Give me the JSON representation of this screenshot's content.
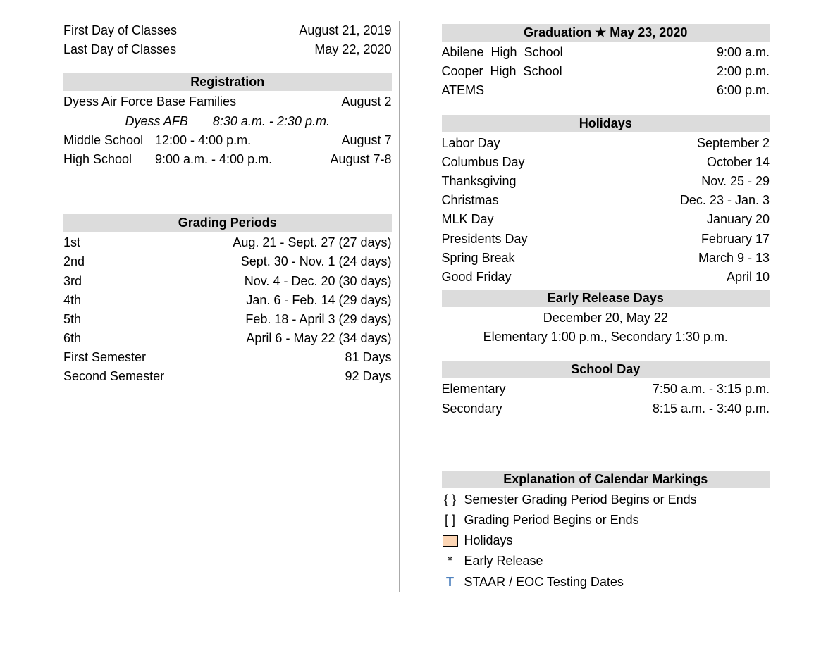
{
  "colors": {
    "header_bg": "#dcdcdc",
    "text": "#000000",
    "background": "#ffffff",
    "holiday_box_fill": "#fcd5b4",
    "holiday_box_border": "#000000",
    "t_color": "#4f81bd",
    "divider": "#aaaaaa"
  },
  "typography": {
    "font_family": "Arial",
    "base_font_size_pt": 14
  },
  "left": {
    "classes": [
      {
        "label": "First Day of Classes",
        "value": "August 21, 2019"
      },
      {
        "label": "Last Day of Classes",
        "value": "May 22, 2020"
      }
    ],
    "registration": {
      "header": "Registration",
      "rows": [
        {
          "label": "Dyess Air Force Base Families",
          "time": "",
          "date": "August 2"
        }
      ],
      "italic_line": "Dyess AFB       8:30 a.m. - 2:30 p.m.",
      "rows2": [
        {
          "label": "Middle School",
          "time": "12:00 - 4:00 p.m.",
          "date": "August 7"
        },
        {
          "label": "High School",
          "time": "9:00 a.m. - 4:00 p.m.",
          "date": "August 7-8"
        }
      ]
    },
    "grading": {
      "header": "Grading Periods",
      "rows": [
        {
          "label": "1st",
          "value": "Aug. 21 - Sept. 27 (27 days)"
        },
        {
          "label": "2nd",
          "value": "Sept. 30 - Nov. 1 (24 days)"
        },
        {
          "label": "3rd",
          "value": "Nov. 4 - Dec. 20 (30 days)"
        },
        {
          "label": "4th",
          "value": "Jan. 6 - Feb. 14 (29 days)"
        },
        {
          "label": "5th",
          "value": "Feb. 18 - April 3 (29 days)"
        },
        {
          "label": "6th",
          "value": "April 6 - May 22 (34 days)"
        },
        {
          "label": "First Semester",
          "value": "81 Days"
        },
        {
          "label": "Second Semester",
          "value": "92 Days"
        }
      ]
    }
  },
  "right": {
    "graduation": {
      "header": "Graduation ★ May 23, 2020",
      "rows": [
        {
          "label": "Abilene  High  School",
          "value": "9:00 a.m."
        },
        {
          "label": "Cooper  High  School",
          "value": "2:00 p.m."
        },
        {
          "label": "ATEMS",
          "value": "6:00 p.m."
        }
      ]
    },
    "holidays": {
      "header": "Holidays",
      "rows": [
        {
          "label": "Labor Day",
          "value": "September 2"
        },
        {
          "label": "Columbus Day",
          "value": "October 14"
        },
        {
          "label": "Thanksgiving",
          "value": "Nov. 25 - 29"
        },
        {
          "label": "Christmas",
          "value": "Dec. 23 - Jan. 3"
        },
        {
          "label": "MLK Day",
          "value": "January 20"
        },
        {
          "label": "Presidents Day",
          "value": "February 17"
        },
        {
          "label": "Spring Break",
          "value": "March 9 - 13"
        },
        {
          "label": "Good Friday",
          "value": "April 10"
        }
      ]
    },
    "early_release": {
      "header": "Early Release Days",
      "line1": "December 20, May 22",
      "line2": "Elementary 1:00 p.m., Secondary 1:30 p.m."
    },
    "school_day": {
      "header": "School Day",
      "rows": [
        {
          "label": "Elementary",
          "value": "7:50 a.m. - 3:15 p.m."
        },
        {
          "label": "Secondary",
          "value": "8:15 a.m. - 3:40 p.m."
        }
      ]
    },
    "legend": {
      "header": "Explanation of Calendar Markings",
      "items": [
        {
          "symbol": "{  }",
          "label": "Semester Grading Period Begins or Ends"
        },
        {
          "symbol": "[  ]",
          "label": "Grading Period Begins or Ends"
        },
        {
          "symbol": "box",
          "label": "Holidays"
        },
        {
          "symbol": "*",
          "label": "Early Release"
        },
        {
          "symbol": "T",
          "label": "STAAR / EOC Testing Dates"
        }
      ]
    }
  }
}
